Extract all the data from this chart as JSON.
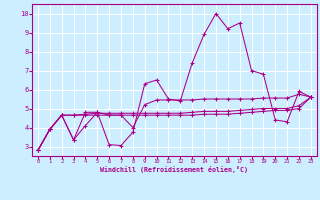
{
  "xlabel": "Windchill (Refroidissement éolien,°C)",
  "bg_color": "#cceeff",
  "grid_color": "#ffffff",
  "line_color": "#aa0088",
  "xlim": [
    -0.5,
    23.5
  ],
  "ylim": [
    2.5,
    10.5
  ],
  "xticks": [
    0,
    1,
    2,
    3,
    4,
    5,
    6,
    7,
    8,
    9,
    10,
    11,
    12,
    13,
    14,
    15,
    16,
    17,
    18,
    19,
    20,
    21,
    22,
    23
  ],
  "yticks": [
    3,
    4,
    5,
    6,
    7,
    8,
    9,
    10
  ],
  "lines": [
    {
      "x": [
        0,
        1,
        2,
        3,
        4,
        5,
        6,
        7,
        8,
        9,
        10,
        11,
        12,
        13,
        14,
        15,
        16,
        17,
        18,
        19,
        20,
        21,
        22,
        23
      ],
      "y": [
        2.8,
        3.9,
        4.65,
        3.35,
        4.1,
        4.8,
        3.1,
        3.05,
        3.75,
        6.3,
        6.5,
        5.5,
        5.4,
        7.4,
        8.9,
        10.0,
        9.2,
        9.5,
        7.0,
        6.8,
        4.4,
        4.3,
        5.9,
        5.6
      ]
    },
    {
      "x": [
        0,
        1,
        2,
        3,
        4,
        5,
        6,
        7,
        8,
        9,
        10,
        11,
        12,
        13,
        14,
        15,
        16,
        17,
        18,
        19,
        20,
        21,
        22,
        23
      ],
      "y": [
        2.8,
        3.9,
        4.65,
        3.35,
        4.8,
        4.8,
        4.65,
        4.65,
        4.0,
        5.2,
        5.45,
        5.45,
        5.45,
        5.45,
        5.5,
        5.5,
        5.5,
        5.5,
        5.5,
        5.55,
        5.55,
        5.55,
        5.75,
        5.6
      ]
    },
    {
      "x": [
        0,
        1,
        2,
        3,
        4,
        5,
        6,
        7,
        8,
        9,
        10,
        11,
        12,
        13,
        14,
        15,
        16,
        17,
        18,
        19,
        20,
        21,
        22,
        23
      ],
      "y": [
        2.8,
        3.9,
        4.65,
        4.65,
        4.65,
        4.65,
        4.65,
        4.65,
        4.65,
        4.65,
        4.65,
        4.65,
        4.65,
        4.65,
        4.7,
        4.7,
        4.7,
        4.75,
        4.8,
        4.85,
        4.9,
        4.9,
        5.0,
        5.6
      ]
    },
    {
      "x": [
        0,
        1,
        2,
        3,
        4,
        5,
        6,
        7,
        8,
        9,
        10,
        11,
        12,
        13,
        14,
        15,
        16,
        17,
        18,
        19,
        20,
        21,
        22,
        23
      ],
      "y": [
        2.8,
        3.9,
        4.65,
        4.65,
        4.7,
        4.75,
        4.75,
        4.75,
        4.75,
        4.75,
        4.75,
        4.75,
        4.75,
        4.8,
        4.85,
        4.85,
        4.85,
        4.9,
        4.95,
        5.0,
        5.0,
        5.0,
        5.15,
        5.6
      ]
    }
  ]
}
